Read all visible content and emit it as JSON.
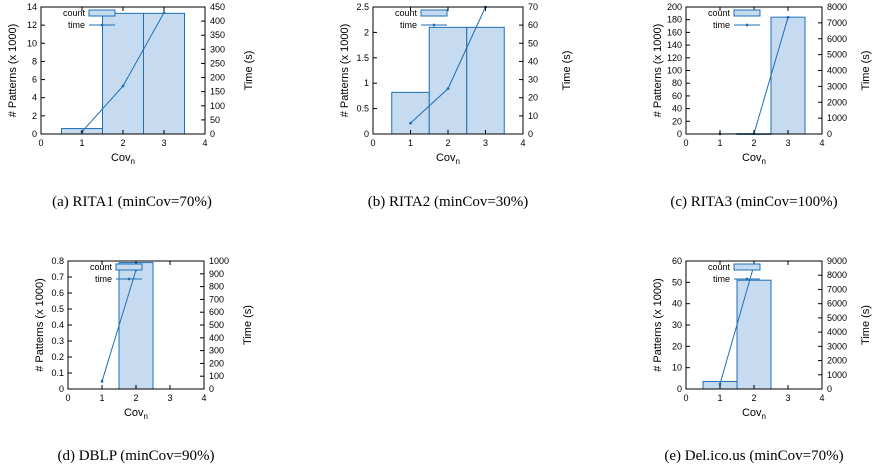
{
  "figure": {
    "legend": {
      "count_label": "count",
      "time_label": "time"
    },
    "xlabel": "Cov",
    "xlabel_sub": "n",
    "ylabel_left": "# Patterns (x 1000)",
    "ylabel_right": "Time (s)"
  },
  "chart_data": [
    {
      "type": "bar",
      "caption": "(a) RITA1 (minCov=70%)",
      "xlim": [
        0,
        4
      ],
      "xticks": [
        "0",
        "1",
        "2",
        "3",
        "4"
      ],
      "ylim": [
        0,
        14
      ],
      "yticks": [
        "0",
        "2",
        "4",
        "6",
        "8",
        "10",
        "12",
        "14"
      ],
      "y2lim": [
        0,
        450
      ],
      "y2ticks": [
        "0",
        "50",
        "100",
        "150",
        "200",
        "250",
        "300",
        "350",
        "400",
        "450"
      ],
      "legend_position": "top-left",
      "series": [
        {
          "name": "count",
          "axis": "left",
          "type": "bar",
          "x": [
            1,
            2,
            3
          ],
          "values": [
            0.6,
            13.3,
            13.3
          ]
        },
        {
          "name": "time",
          "axis": "right",
          "type": "line",
          "x": [
            1,
            2,
            3
          ],
          "values": [
            8,
            170,
            430
          ]
        }
      ]
    },
    {
      "type": "bar",
      "caption": "(b) RITA2 (minCov=30%)",
      "xlim": [
        0,
        4
      ],
      "xticks": [
        "0",
        "1",
        "2",
        "3",
        "4"
      ],
      "ylim": [
        0,
        2.5
      ],
      "yticks": [
        "0",
        "0.5",
        "1",
        "1.5",
        "2",
        "2.5"
      ],
      "y2lim": [
        0,
        70
      ],
      "y2ticks": [
        "0",
        "10",
        "20",
        "30",
        "40",
        "50",
        "60",
        "70"
      ],
      "legend_position": "top-left",
      "series": [
        {
          "name": "count",
          "axis": "left",
          "type": "bar",
          "x": [
            1,
            2,
            3
          ],
          "values": [
            0.82,
            2.1,
            2.1
          ]
        },
        {
          "name": "time",
          "axis": "right",
          "type": "line",
          "x": [
            1,
            2,
            3
          ],
          "values": [
            6,
            25,
            70
          ]
        }
      ]
    },
    {
      "type": "bar",
      "caption": "(c) RITA3 (minCov=100%)",
      "xlim": [
        0,
        4
      ],
      "xticks": [
        "0",
        "1",
        "2",
        "3",
        "4"
      ],
      "ylim": [
        0,
        200
      ],
      "yticks": [
        "0",
        "20",
        "40",
        "60",
        "80",
        "100",
        "120",
        "140",
        "160",
        "180",
        "200"
      ],
      "y2lim": [
        0,
        8000
      ],
      "y2ticks": [
        "0",
        "1000",
        "2000",
        "3000",
        "4000",
        "5000",
        "6000",
        "7000",
        "8000"
      ],
      "legend_position": "top-left",
      "series": [
        {
          "name": "count",
          "axis": "left",
          "type": "bar",
          "x": [
            1,
            2,
            3
          ],
          "values": [
            0,
            0.3,
            184
          ]
        },
        {
          "name": "time",
          "axis": "right",
          "type": "line",
          "x": [
            1,
            2,
            3
          ],
          "values": [
            0,
            20,
            7350
          ]
        }
      ]
    },
    {
      "type": "bar",
      "caption": "(d) DBLP (minCov=90%)",
      "xlim": [
        0,
        4
      ],
      "xticks": [
        "0",
        "1",
        "2",
        "3",
        "4"
      ],
      "ylim": [
        0,
        0.8
      ],
      "yticks": [
        "0",
        "0.1",
        "0.2",
        "0.3",
        "0.4",
        "0.5",
        "0.6",
        "0.7",
        "0.8"
      ],
      "y2lim": [
        0,
        1000
      ],
      "y2ticks": [
        "0",
        "100",
        "200",
        "300",
        "400",
        "500",
        "600",
        "700",
        "800",
        "900",
        "1000"
      ],
      "legend_position": "top-left",
      "series": [
        {
          "name": "count",
          "axis": "left",
          "type": "bar",
          "x": [
            2
          ],
          "values": [
            0.79
          ]
        },
        {
          "name": "time",
          "axis": "right",
          "type": "line",
          "x": [
            1,
            2
          ],
          "values": [
            60,
            930
          ]
        }
      ]
    },
    {
      "type": "bar",
      "caption": "(e) Del.ico.us (minCov=70%)",
      "xlim": [
        0,
        4
      ],
      "xticks": [
        "0",
        "1",
        "2",
        "3",
        "4"
      ],
      "ylim": [
        0,
        60
      ],
      "yticks": [
        "0",
        "10",
        "20",
        "30",
        "40",
        "50",
        "60"
      ],
      "y2lim": [
        0,
        9000
      ],
      "y2ticks": [
        "0",
        "1000",
        "2000",
        "3000",
        "4000",
        "5000",
        "6000",
        "7000",
        "8000",
        "9000"
      ],
      "legend_position": "top-left",
      "series": [
        {
          "name": "count",
          "axis": "left",
          "type": "bar",
          "x": [
            1,
            2
          ],
          "values": [
            3.5,
            51
          ]
        },
        {
          "name": "time",
          "axis": "right",
          "type": "line",
          "x": [
            1,
            2
          ],
          "values": [
            350,
            8700
          ]
        }
      ]
    }
  ]
}
